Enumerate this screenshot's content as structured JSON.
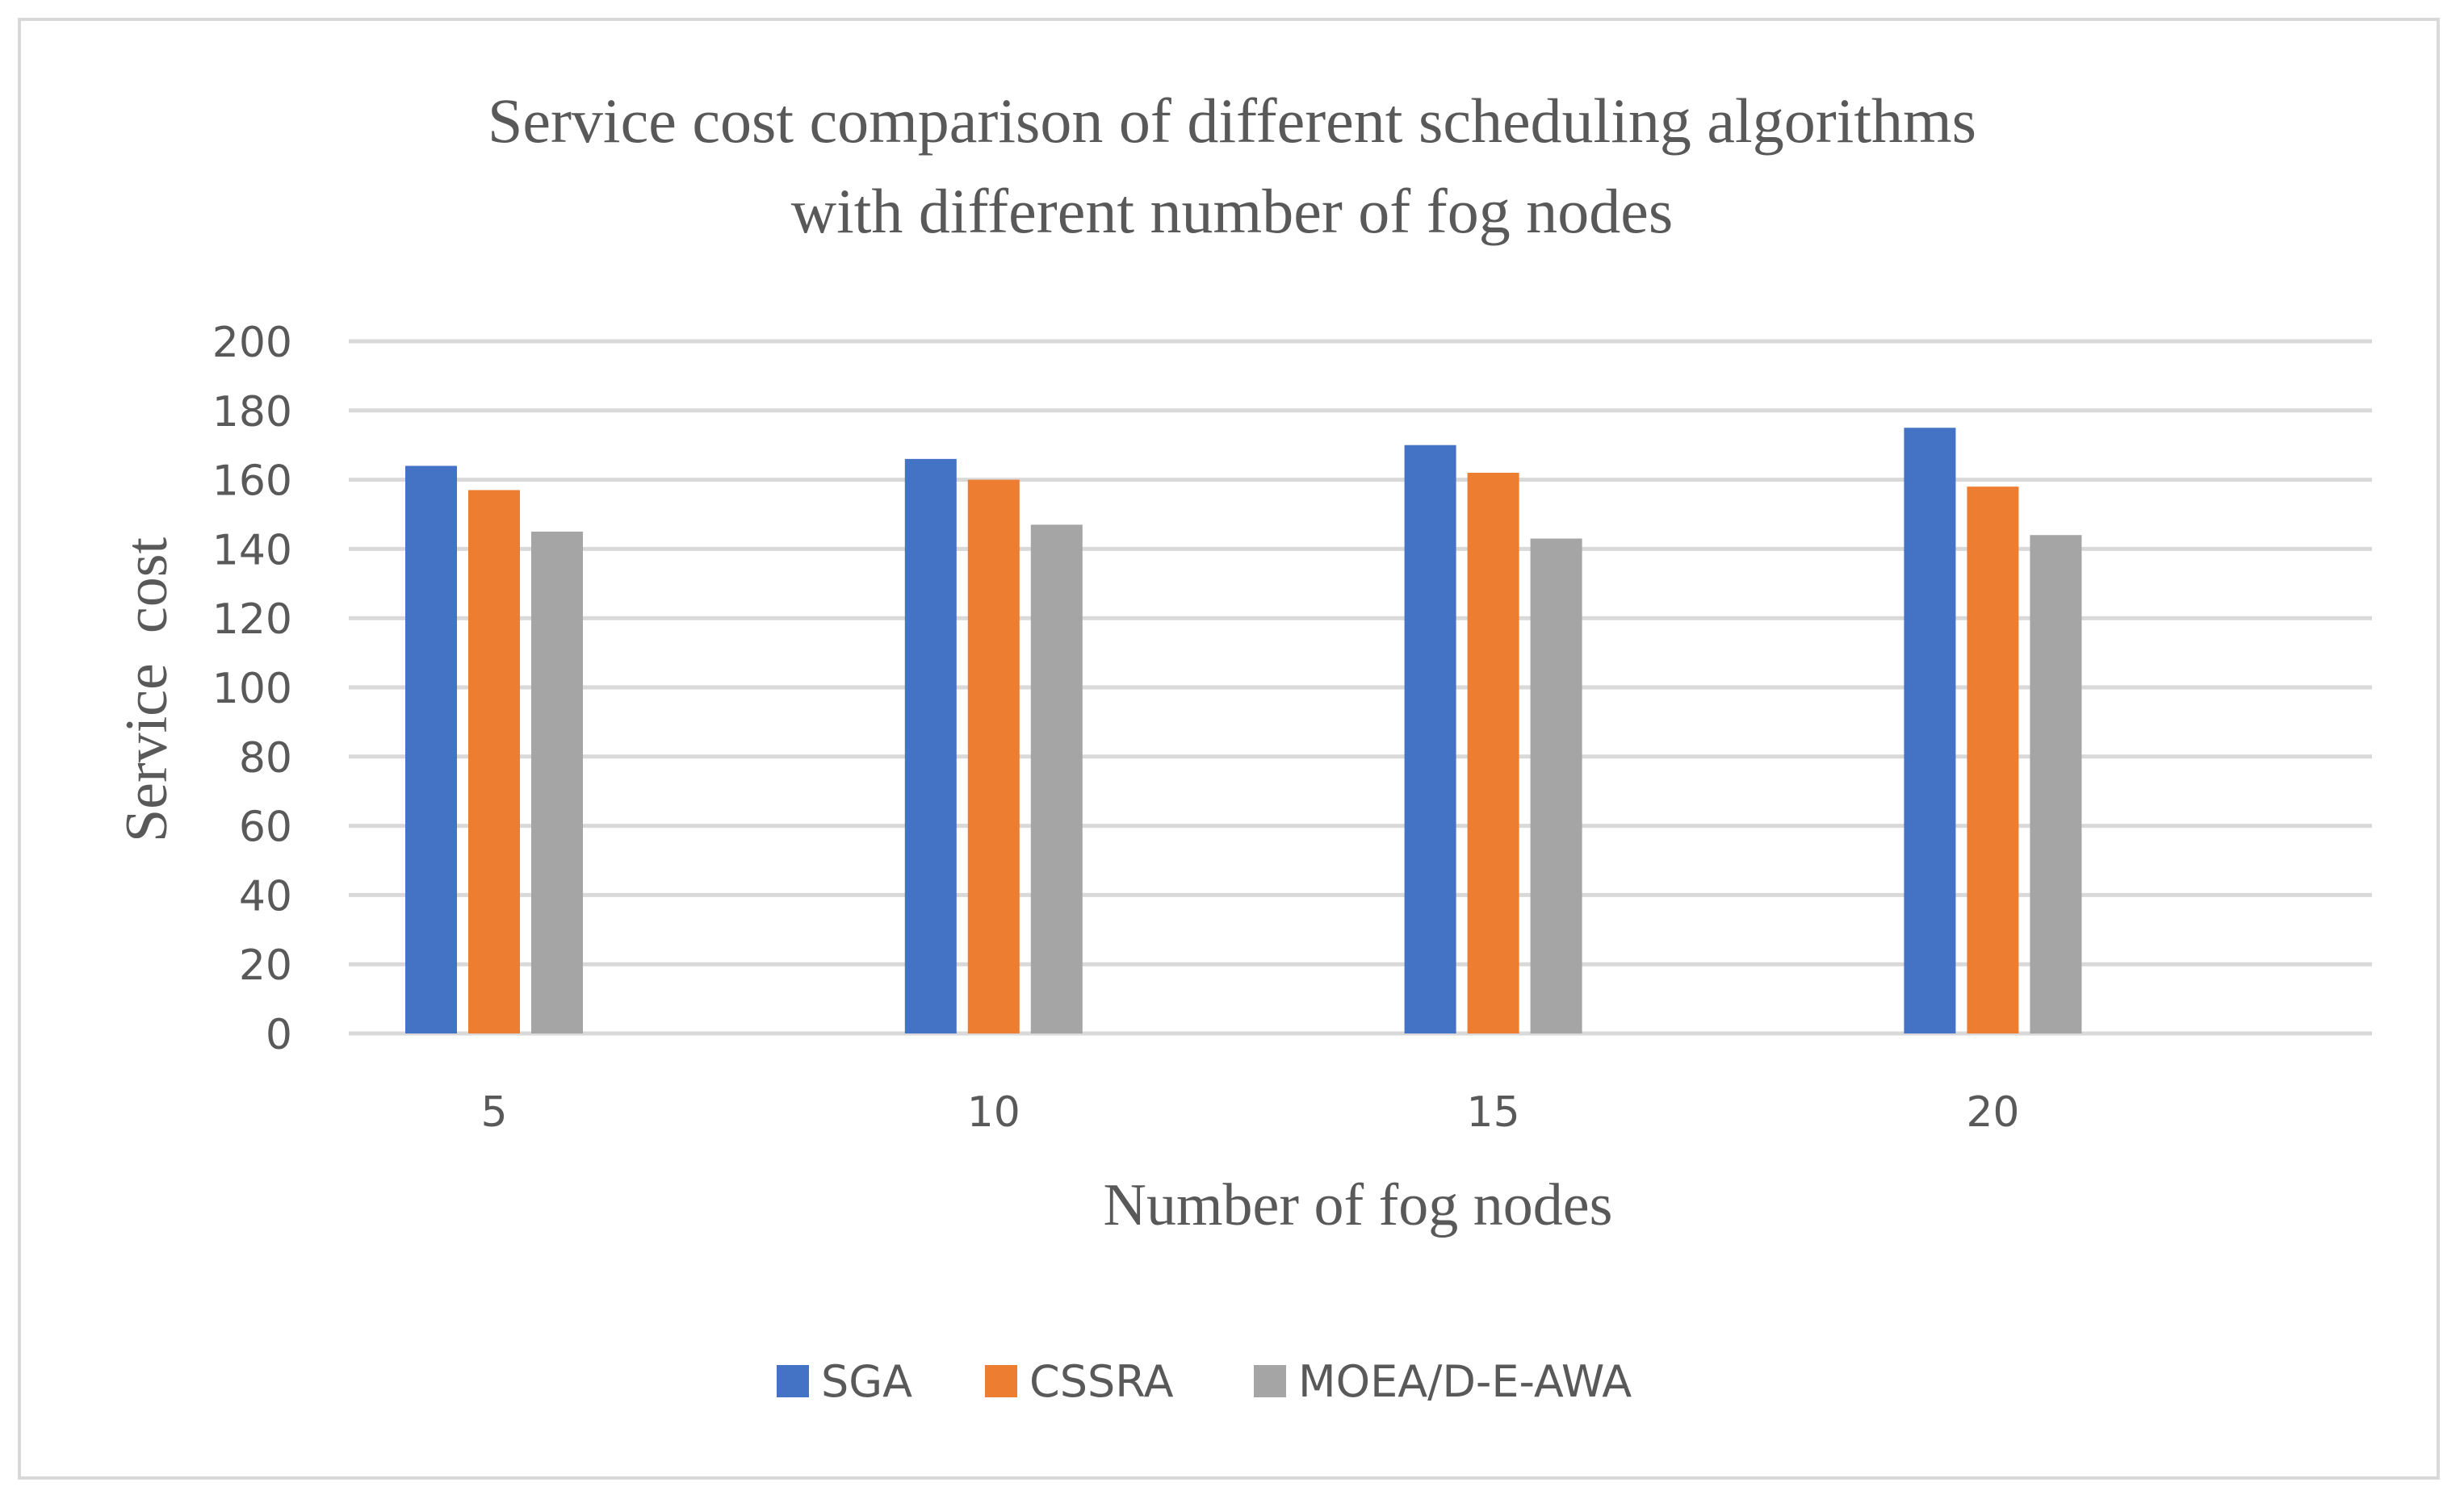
{
  "chart_data": {
    "type": "bar",
    "title": "Service cost comparison of different scheduling algorithms with different number of fog nodes",
    "title_lines": [
      "Service cost comparison of different scheduling algorithms",
      "with different number of fog nodes"
    ],
    "xlabel": "Number of fog nodes",
    "ylabel": "Service  cost",
    "categories": [
      "5",
      "10",
      "15",
      "20"
    ],
    "ylim": [
      0,
      200
    ],
    "ytick_step": 20,
    "grid": true,
    "legend_position": "bottom",
    "series": [
      {
        "name": "SGA",
        "color": "#4472c4",
        "values": [
          164,
          166,
          170,
          175
        ]
      },
      {
        "name": "CSSRA",
        "color": "#ed7d31",
        "values": [
          157,
          160,
          162,
          158
        ]
      },
      {
        "name": "MOEA/D-E-AWA",
        "color": "#a5a5a5",
        "values": [
          145,
          147,
          143,
          144
        ]
      }
    ]
  }
}
